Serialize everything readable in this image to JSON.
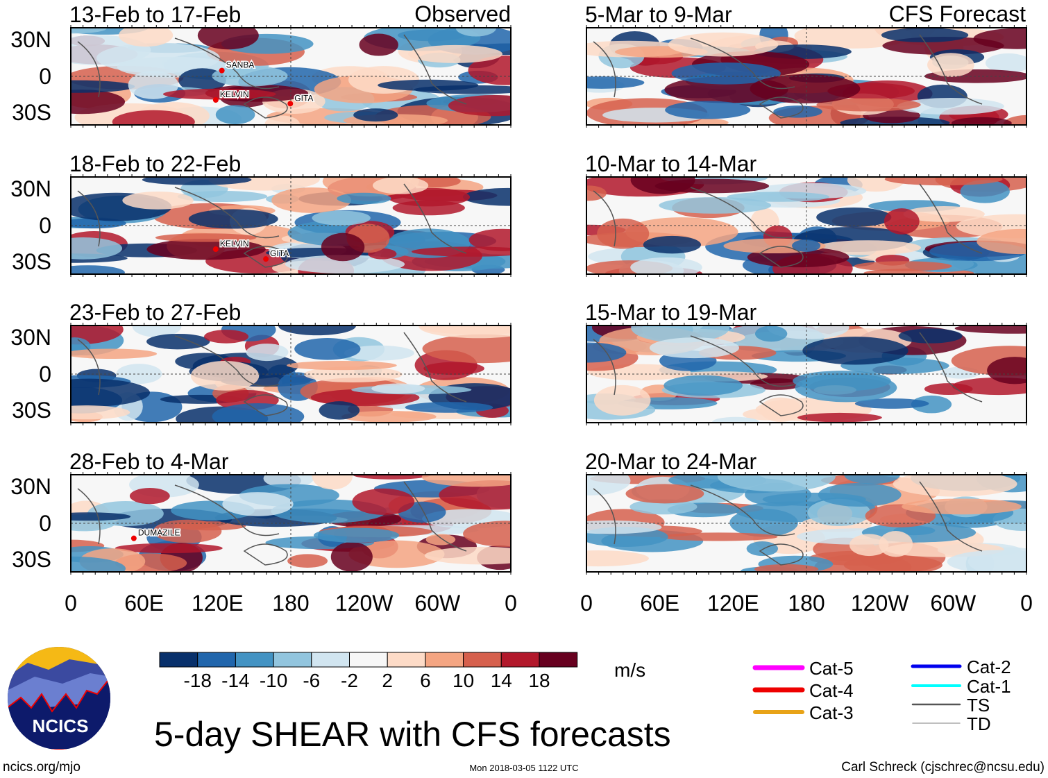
{
  "columns": {
    "left_header": "Observed",
    "right_header": "CFS Forecast"
  },
  "panels": [
    {
      "label": "13-Feb to 17-Feb",
      "column": "left",
      "storms": [
        {
          "name": "SANBA",
          "lon": 127,
          "lat": 7
        },
        {
          "name": "KELVIN",
          "lon": 122,
          "lat": -17
        },
        {
          "name": "GITA",
          "lon": 183,
          "lat": -20
        }
      ]
    },
    {
      "label": "18-Feb to 22-Feb",
      "column": "left",
      "storms": [
        {
          "name": "KELVIN",
          "lon": 122,
          "lat": -17
        },
        {
          "name": "GITA",
          "lon": 163,
          "lat": -25
        }
      ]
    },
    {
      "label": "23-Feb to 27-Feb",
      "column": "left",
      "storms": []
    },
    {
      "label": "28-Feb to 4-Mar",
      "column": "left",
      "storms": [
        {
          "name": "DUMAZILE",
          "lon": 55,
          "lat": -10
        }
      ]
    },
    {
      "label": "5-Mar to 9-Mar",
      "column": "right",
      "storms": []
    },
    {
      "label": "10-Mar to 14-Mar",
      "column": "right",
      "storms": []
    },
    {
      "label": "15-Mar to 19-Mar",
      "column": "right",
      "storms": []
    },
    {
      "label": "20-Mar to 24-Mar",
      "column": "right",
      "storms": []
    }
  ],
  "lat_labels": [
    "30N",
    "0",
    "30S"
  ],
  "lon_labels": [
    "0",
    "60E",
    "120E",
    "180",
    "120W",
    "60W",
    "0"
  ],
  "colorbar": {
    "unit": "m/s",
    "colors": [
      "#08306b",
      "#2166ac",
      "#4393c3",
      "#92c5de",
      "#d1e5f0",
      "#f7f7f7",
      "#fddbc7",
      "#f4a582",
      "#d6604d",
      "#b2182b",
      "#67001f"
    ],
    "labels": [
      "-18",
      "-14",
      "-10",
      "-6",
      "-2",
      "2",
      "6",
      "10",
      "14",
      "18"
    ]
  },
  "legend": [
    {
      "label": "Cat-5",
      "color": "#ff00ff"
    },
    {
      "label": "Cat-4",
      "color": "#ee0000"
    },
    {
      "label": "Cat-3",
      "color": "#e8a317"
    },
    {
      "label": "Cat-2",
      "color": "#0000ee"
    },
    {
      "label": "Cat-1",
      "color": "#00ffff"
    },
    {
      "label": "TS",
      "color": "#555555"
    },
    {
      "label": "TD",
      "color": "#aaaaaa"
    }
  ],
  "title": "5-day SHEAR with CFS forecasts",
  "logo_text": "NCICS",
  "url": "ncics.org/mjo",
  "timestamp": "Mon 2018-03-05 1122 UTC",
  "credit": "Carl Schreck (cjschrec@ncsu.edu)"
}
